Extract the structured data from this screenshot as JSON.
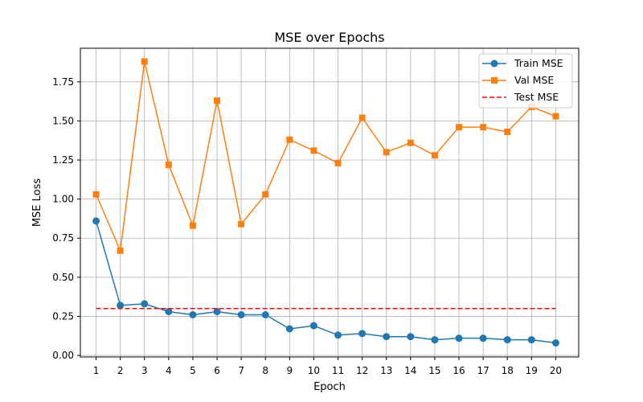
{
  "chart_data": {
    "type": "line",
    "title": "MSE over Epochs",
    "xlabel": "Epoch",
    "ylabel": "MSE Loss",
    "x": [
      1,
      2,
      3,
      4,
      5,
      6,
      7,
      8,
      9,
      10,
      11,
      12,
      13,
      14,
      15,
      16,
      17,
      18,
      19,
      20
    ],
    "xlim": [
      0.35,
      20.95
    ],
    "ylim": [
      -0.01,
      1.965
    ],
    "y_ticks": [
      "0.00",
      "0.25",
      "0.50",
      "0.75",
      "1.00",
      "1.25",
      "1.50",
      "1.75"
    ],
    "grid": true,
    "legend_position": "top-right",
    "series": [
      {
        "name": "Train MSE",
        "color": "#1f77b4",
        "marker": "circle",
        "line_style": "solid",
        "values": [
          0.86,
          0.32,
          0.33,
          0.28,
          0.26,
          0.28,
          0.26,
          0.26,
          0.17,
          0.19,
          0.13,
          0.14,
          0.12,
          0.12,
          0.1,
          0.11,
          0.11,
          0.1,
          0.1,
          0.08
        ]
      },
      {
        "name": "Val MSE",
        "color": "#ff7f0e",
        "marker": "square",
        "line_style": "solid",
        "values": [
          1.03,
          0.67,
          1.88,
          1.22,
          0.83,
          1.63,
          0.84,
          1.03,
          1.38,
          1.31,
          1.23,
          1.52,
          1.3,
          1.36,
          1.28,
          1.46,
          1.46,
          1.43,
          1.59,
          1.53
        ]
      },
      {
        "name": "Test MSE",
        "color": "#ff0000",
        "marker": "none",
        "line_style": "dashed",
        "values": [
          0.3,
          0.3,
          0.3,
          0.3,
          0.3,
          0.3,
          0.3,
          0.3,
          0.3,
          0.3,
          0.3,
          0.3,
          0.3,
          0.3,
          0.3,
          0.3,
          0.3,
          0.3,
          0.3,
          0.3
        ]
      }
    ]
  }
}
